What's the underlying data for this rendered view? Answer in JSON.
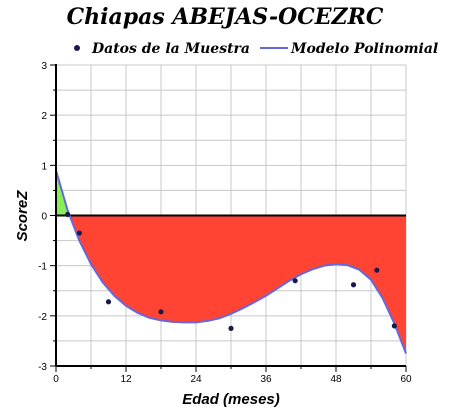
{
  "chart_data": {
    "type": "line",
    "title": "Chiapas ABEJAS-OCEZRC",
    "xlabel": "Edad (meses)",
    "ylabel": "ScoreZ",
    "xlim": [
      0,
      60
    ],
    "ylim": [
      -3,
      3
    ],
    "x_ticks": [
      0,
      12,
      24,
      36,
      48,
      60
    ],
    "y_ticks": [
      3,
      2,
      1,
      0,
      -1,
      -2,
      -3
    ],
    "grid": true,
    "legend_position": "top",
    "series": [
      {
        "name": "Datos de la Muestra",
        "kind": "scatter",
        "color": "#1a1a4a",
        "x": [
          2,
          4,
          9,
          18,
          30,
          41,
          51,
          55,
          58
        ],
        "y": [
          0.02,
          -0.35,
          -1.72,
          -1.92,
          -2.25,
          -1.3,
          -1.38,
          -1.09,
          -2.2
        ]
      },
      {
        "name": "Modelo Polinomial",
        "kind": "line",
        "color": "#6666dd",
        "x": [
          0,
          2,
          4,
          6,
          8,
          10,
          12,
          14,
          16,
          18,
          20,
          22,
          24,
          26,
          28,
          30,
          32,
          34,
          36,
          38,
          40,
          42,
          44,
          46,
          48,
          50,
          52,
          54,
          56,
          58,
          60
        ],
        "y": [
          0.9,
          0.1,
          -0.5,
          -0.97,
          -1.33,
          -1.6,
          -1.8,
          -1.94,
          -2.04,
          -2.09,
          -2.12,
          -2.13,
          -2.13,
          -2.1,
          -2.05,
          -1.96,
          -1.85,
          -1.73,
          -1.6,
          -1.45,
          -1.3,
          -1.17,
          -1.07,
          -1.0,
          -0.97,
          -0.99,
          -1.08,
          -1.28,
          -1.65,
          -2.15,
          -2.75
        ]
      }
    ],
    "fill_colors": {
      "above_zero": "#88ee55",
      "below_zero": "#ff4433"
    },
    "zero_line_color": "#000000"
  }
}
